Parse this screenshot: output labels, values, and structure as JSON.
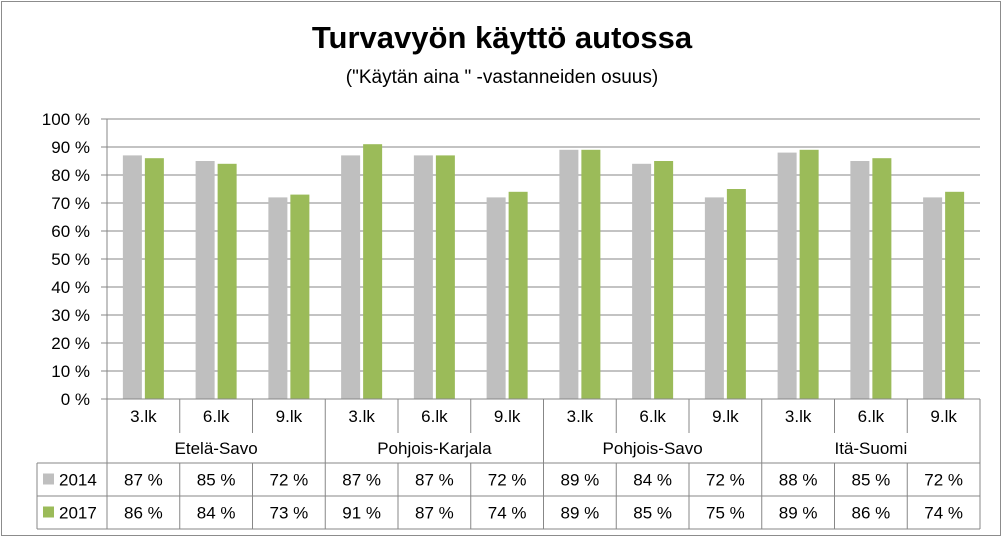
{
  "chart_data": {
    "type": "bar",
    "title": "Turvavyön käyttö autossa",
    "subtitle": "(\"Käytän aina \" -vastanneiden osuus)",
    "ylim": [
      0,
      100
    ],
    "yticks": [
      "0 %",
      "10 %",
      "20 %",
      "30 %",
      "40 %",
      "50 %",
      "60 %",
      "70 %",
      "80 %",
      "90 %",
      "100 %"
    ],
    "grid": true,
    "categories": [
      "3.lk",
      "6.lk",
      "9.lk",
      "3.lk",
      "6.lk",
      "9.lk",
      "3.lk",
      "6.lk",
      "9.lk",
      "3.lk",
      "6.lk",
      "9.lk"
    ],
    "groups": [
      "Etelä-Savo",
      "Pohjois-Karjala",
      "Pohjois-Savo",
      "Itä-Suomi"
    ],
    "series": [
      {
        "name": "2014",
        "color": "#bfbfbf",
        "values": [
          87,
          85,
          72,
          87,
          87,
          72,
          89,
          84,
          72,
          88,
          85,
          72
        ],
        "labels": [
          "87 %",
          "85 %",
          "72 %",
          "87 %",
          "87 %",
          "72 %",
          "89 %",
          "84 %",
          "72 %",
          "88 %",
          "85 %",
          "72 %"
        ]
      },
      {
        "name": "2017",
        "color": "#9bbb59",
        "values": [
          86,
          84,
          73,
          91,
          87,
          74,
          89,
          85,
          75,
          89,
          86,
          74
        ],
        "labels": [
          "86 %",
          "84 %",
          "73 %",
          "91 %",
          "87 %",
          "74 %",
          "89 %",
          "85 %",
          "75 %",
          "89 %",
          "86 %",
          "74 %"
        ]
      }
    ],
    "legend": "data-table"
  }
}
